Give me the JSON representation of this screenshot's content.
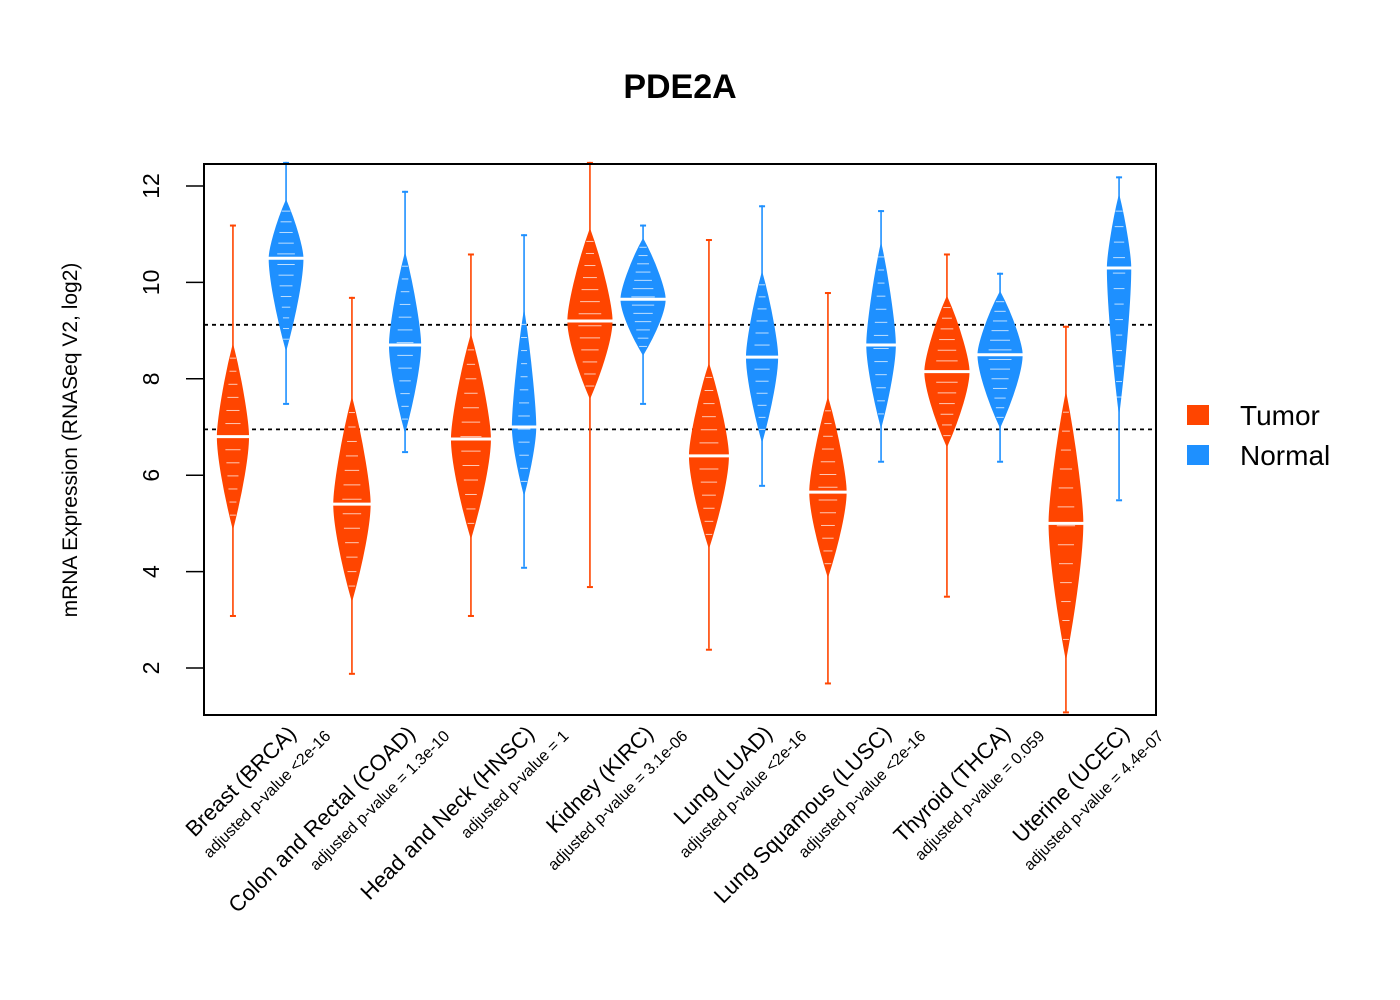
{
  "chart_data": {
    "type": "violin",
    "title": "PDE2A",
    "xlabel": "",
    "ylabel": "mRNA Expression (RNASeq V2, log2)",
    "ylim": [
      1.0,
      12.5
    ],
    "yticks": [
      2,
      4,
      6,
      8,
      10,
      12
    ],
    "grid": false,
    "reference_lines": [
      9.12,
      6.95
    ],
    "legend": {
      "placement": "right",
      "entries": [
        {
          "name": "Tumor",
          "color": "#FF4500"
        },
        {
          "name": "Normal",
          "color": "#1E90FF"
        }
      ]
    },
    "categories": [
      {
        "label": "Breast (BRCA)",
        "pvalue": "adjusted p-value <2e-16"
      },
      {
        "label": "Colon and Rectal (COAD)",
        "pvalue": "adjusted p-value = 1.3e-10"
      },
      {
        "label": "Head and Neck (HNSC)",
        "pvalue": "adjusted p-value = 1"
      },
      {
        "label": "Kidney (KIRC)",
        "pvalue": "adjusted p-value = 3.1e-06"
      },
      {
        "label": "Lung (LUAD)",
        "pvalue": "adjusted p-value <2e-16"
      },
      {
        "label": "Lung Squamous (LUSC)",
        "pvalue": "adjusted p-value <2e-16"
      },
      {
        "label": "Thyroid (THCA)",
        "pvalue": "adjusted p-value = 0.059"
      },
      {
        "label": "Uterine (UCEC)",
        "pvalue": "adjusted p-value = 4.4e-07"
      }
    ],
    "series": [
      {
        "name": "Tumor",
        "color": "#FF4500",
        "violins": [
          {
            "min": 3.1,
            "max": 11.2,
            "body_low": 4.9,
            "body_high": 8.7,
            "median": 6.8,
            "width": 0.6
          },
          {
            "min": 1.9,
            "max": 9.7,
            "body_low": 3.4,
            "body_high": 7.6,
            "median": 5.4,
            "width": 0.7
          },
          {
            "min": 3.1,
            "max": 10.6,
            "body_low": 4.7,
            "body_high": 8.9,
            "median": 6.75,
            "width": 0.75
          },
          {
            "min": 3.7,
            "max": 12.5,
            "body_low": 7.6,
            "body_high": 11.1,
            "median": 9.2,
            "width": 0.85
          },
          {
            "min": 2.4,
            "max": 10.9,
            "body_low": 4.5,
            "body_high": 8.3,
            "median": 6.4,
            "width": 0.75
          },
          {
            "min": 1.7,
            "max": 9.8,
            "body_low": 3.9,
            "body_high": 7.6,
            "median": 5.65,
            "width": 0.7
          },
          {
            "min": 3.5,
            "max": 10.6,
            "body_low": 6.6,
            "body_high": 9.7,
            "median": 8.15,
            "width": 0.85
          },
          {
            "min": 1.1,
            "max": 9.1,
            "body_low": 2.2,
            "body_high": 7.7,
            "median": 5.0,
            "width": 0.65
          }
        ]
      },
      {
        "name": "Normal",
        "color": "#1E90FF",
        "violins": [
          {
            "min": 7.5,
            "max": 12.5,
            "body_low": 8.6,
            "body_high": 11.7,
            "median": 10.5,
            "width": 0.65
          },
          {
            "min": 6.5,
            "max": 11.9,
            "body_low": 6.9,
            "body_high": 10.6,
            "median": 8.7,
            "width": 0.6
          },
          {
            "min": 4.1,
            "max": 11.0,
            "body_low": 5.6,
            "body_high": 9.4,
            "median": 7.0,
            "width": 0.45
          },
          {
            "min": 7.5,
            "max": 11.2,
            "body_low": 8.5,
            "body_high": 10.9,
            "median": 9.65,
            "width": 0.85
          },
          {
            "min": 5.8,
            "max": 11.6,
            "body_low": 6.7,
            "body_high": 10.2,
            "median": 8.45,
            "width": 0.6
          },
          {
            "min": 6.3,
            "max": 11.5,
            "body_low": 7.0,
            "body_high": 10.8,
            "median": 8.7,
            "width": 0.55
          },
          {
            "min": 6.3,
            "max": 10.2,
            "body_low": 7.0,
            "body_high": 9.8,
            "median": 8.5,
            "width": 0.85
          },
          {
            "min": 5.5,
            "max": 12.2,
            "body_low": 7.3,
            "body_high": 11.8,
            "median": 10.3,
            "width": 0.45
          }
        ]
      }
    ]
  }
}
